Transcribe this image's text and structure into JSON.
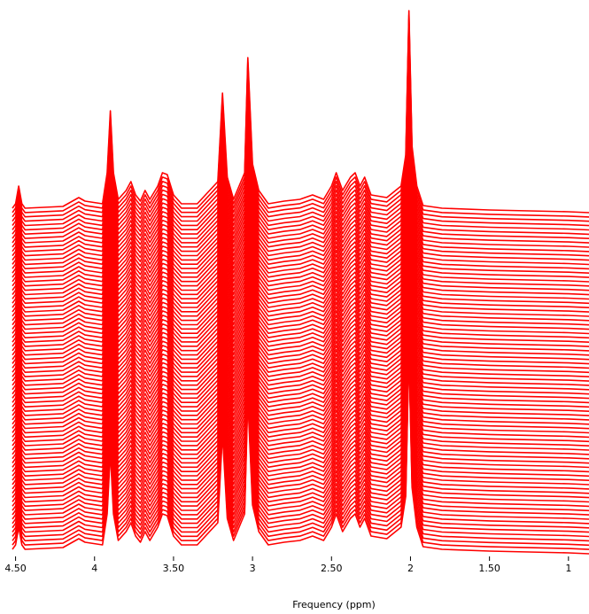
{
  "chart_data": {
    "type": "stacked-spectra",
    "x_label": "Frequency (ppm)",
    "xlim": [
      4.52,
      0.87
    ],
    "ylim": [
      0,
      223
    ],
    "xticks": [
      {
        "value": 4.5,
        "label": "4.50"
      },
      4,
      {
        "value": 3.5,
        "label": "3.50"
      },
      3,
      {
        "value": 2.5,
        "label": "2.50"
      },
      2,
      {
        "value": 1.5,
        "label": "1.50"
      },
      1
    ],
    "series": [
      {
        "color": "#ff0000",
        "x": [
          4.52,
          4.5,
          4.48,
          4.46,
          4.44,
          4.2,
          4.1,
          4.06,
          3.95,
          3.92,
          3.9,
          3.88,
          3.85,
          3.8,
          3.77,
          3.74,
          3.71,
          3.68,
          3.65,
          3.6,
          3.57,
          3.54,
          3.5,
          3.45,
          3.35,
          3.22,
          3.19,
          3.16,
          3.12,
          3.05,
          3.03,
          3.0,
          2.96,
          2.9,
          2.8,
          2.7,
          2.62,
          2.55,
          2.5,
          2.47,
          2.43,
          2.38,
          2.35,
          2.32,
          2.29,
          2.25,
          2.15,
          2.06,
          2.03,
          2.01,
          1.99,
          1.96,
          1.92,
          1.8,
          1.5,
          1.0,
          0.87
        ],
        "values": [
          0,
          5,
          25,
          5,
          0,
          2,
          12,
          8,
          5,
          40,
          110,
          40,
          10,
          20,
          30,
          15,
          8,
          20,
          10,
          25,
          40,
          38,
          15,
          5,
          5,
          30,
          130,
          35,
          10,
          40,
          170,
          50,
          20,
          5,
          8,
          10,
          15,
          10,
          25,
          40,
          20,
          35,
          40,
          25,
          35,
          15,
          12,
          25,
          60,
          223,
          70,
          25,
          3,
          0,
          -2,
          -4,
          -5
        ]
      }
    ]
  }
}
